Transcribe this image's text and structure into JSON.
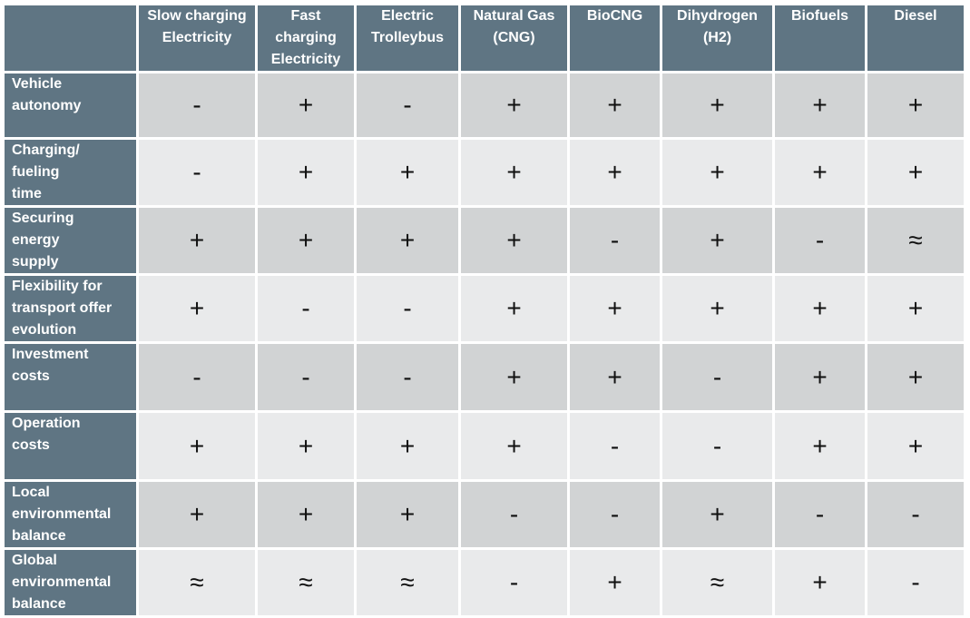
{
  "columns": [
    "Slow charging\nElectricity",
    "Fast\ncharging\nElectricity",
    "Electric\nTrolleybus",
    "Natural Gas\n(CNG)",
    "BioCNG",
    "Dihydrogen\n(H2)",
    "Biofuels",
    "Diesel"
  ],
  "rows": [
    {
      "label": "Vehicle\nautonomy",
      "values": [
        "-",
        "+",
        "-",
        "+",
        "+",
        "+",
        "+",
        "+"
      ]
    },
    {
      "label": "Charging/\nfueling\ntime",
      "values": [
        "-",
        "+",
        "+",
        "+",
        "+",
        "+",
        "+",
        "+"
      ]
    },
    {
      "label": "Securing\nenergy\nsupply",
      "values": [
        "+",
        "+",
        "+",
        "+",
        "-",
        "+",
        "-",
        "≈"
      ]
    },
    {
      "label": "Flexibility for\ntransport offer\nevolution",
      "values": [
        "+",
        "-",
        "-",
        "+",
        "+",
        "+",
        "+",
        "+"
      ]
    },
    {
      "label": "Investment\ncosts",
      "values": [
        "-",
        "-",
        "-",
        "+",
        "+",
        "-",
        "+",
        "+"
      ]
    },
    {
      "label": "Operation\n costs",
      "values": [
        "+",
        "+",
        "+",
        "+",
        "-",
        "-",
        "+",
        "+"
      ]
    },
    {
      "label": "Local\nenvironmental\nbalance",
      "values": [
        "+",
        "+",
        "+",
        "-",
        "-",
        "+",
        "-",
        "-"
      ]
    },
    {
      "label": "Global\nenvironmental\nbalance",
      "values": [
        "≈",
        "≈",
        "≈",
        "-",
        "+",
        "≈",
        "+",
        "-"
      ]
    }
  ],
  "colors": {
    "header_bg": "#5f7583",
    "row_dark": "#d1d3d4",
    "row_light": "#e9eaeb"
  }
}
